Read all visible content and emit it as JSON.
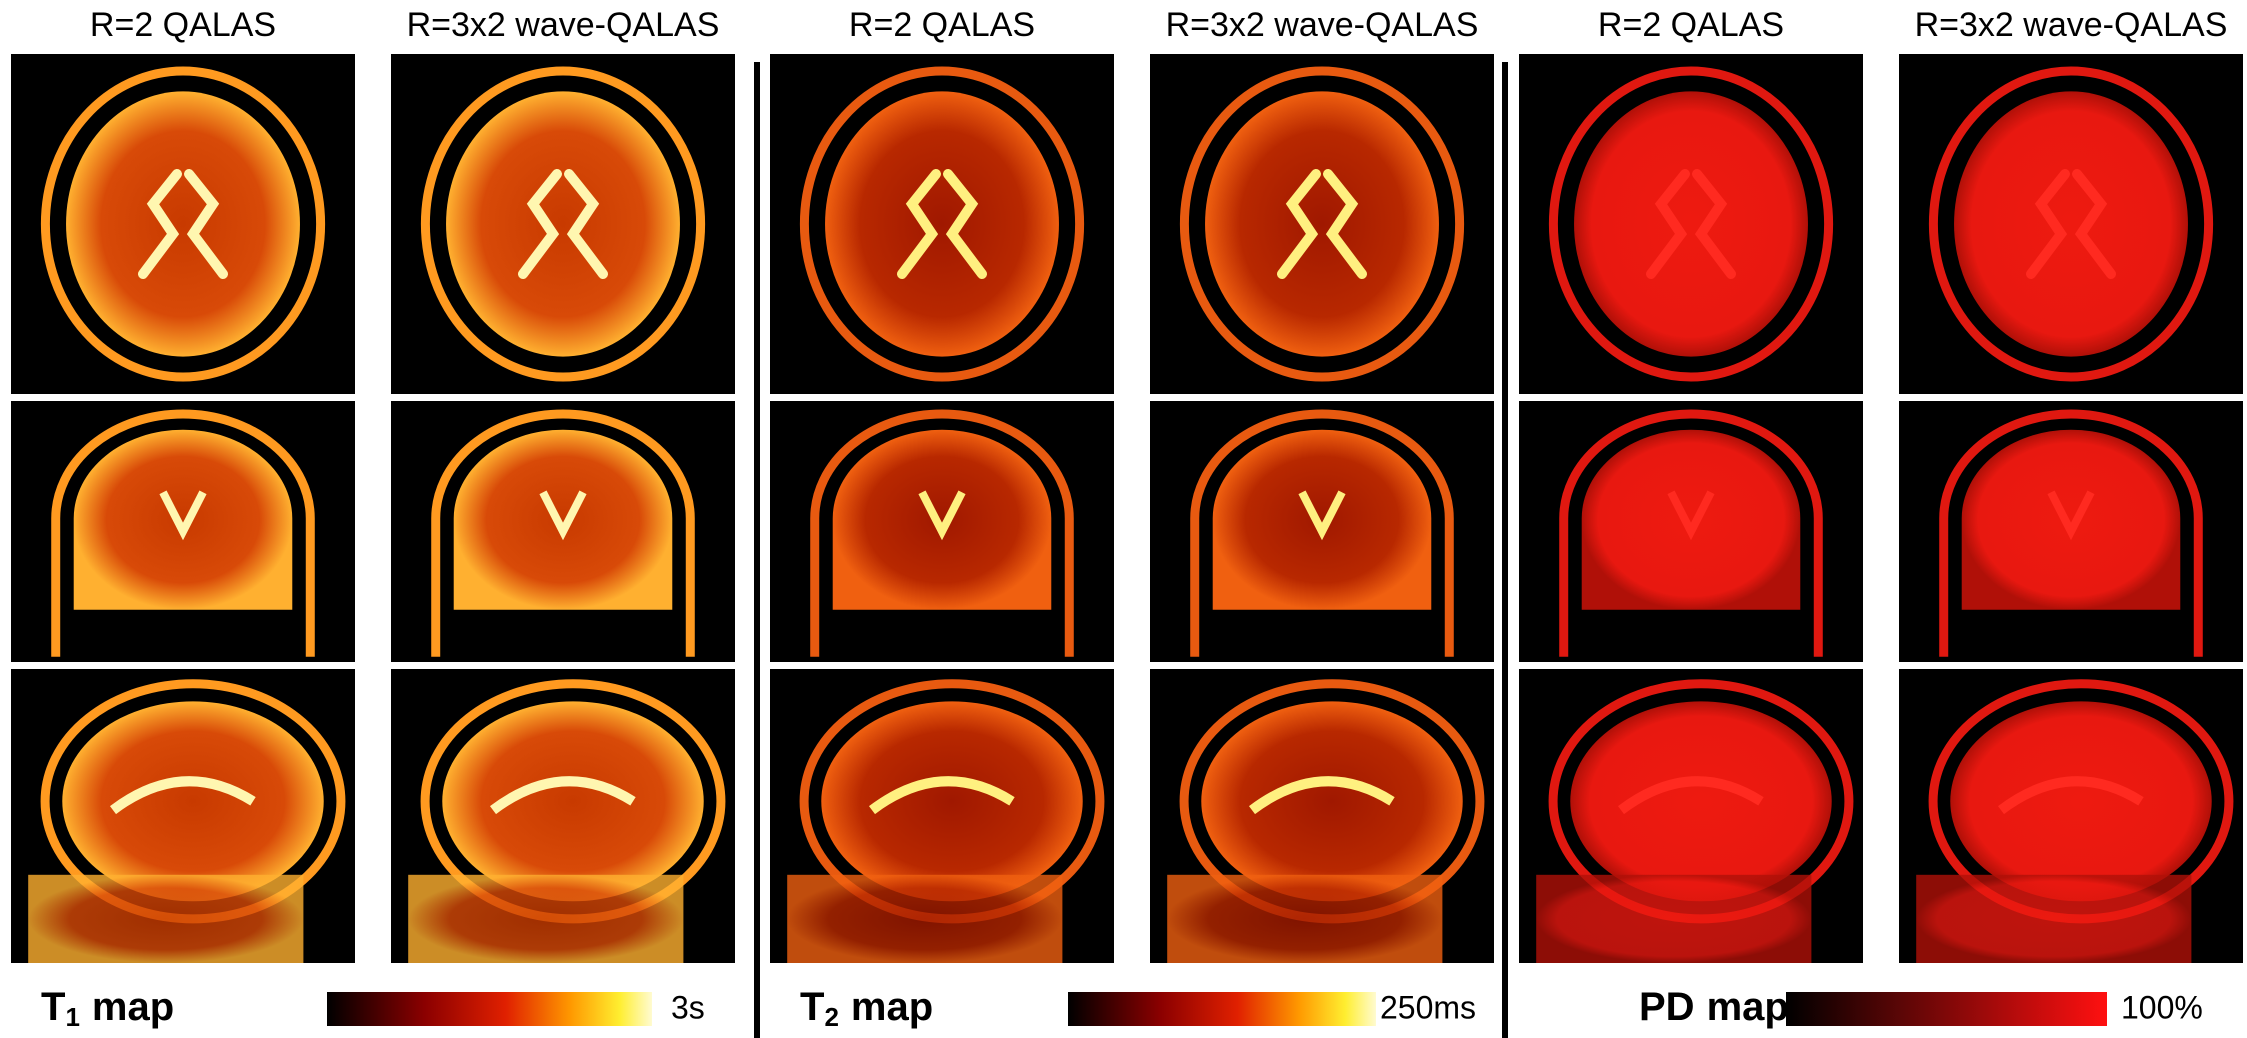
{
  "panels": [
    {
      "columns": [
        "R=2 QALAS",
        "R=3x2 wave-QALAS"
      ],
      "map_label": {
        "symbol": "T",
        "subscript": "1",
        "rest": "map"
      },
      "colorbar_label": "3s"
    },
    {
      "columns": [
        "R=2 QALAS",
        "R=3x2 wave-QALAS"
      ],
      "map_label": {
        "symbol": "T",
        "subscript": "2",
        "rest": "map"
      },
      "colorbar_label": "250ms"
    },
    {
      "columns": [
        "R=2 QALAS",
        "R=3x2 wave-QALAS"
      ],
      "map_label": {
        "symbol": "PD",
        "rest": "map"
      },
      "colorbar_label": "100%"
    }
  ]
}
